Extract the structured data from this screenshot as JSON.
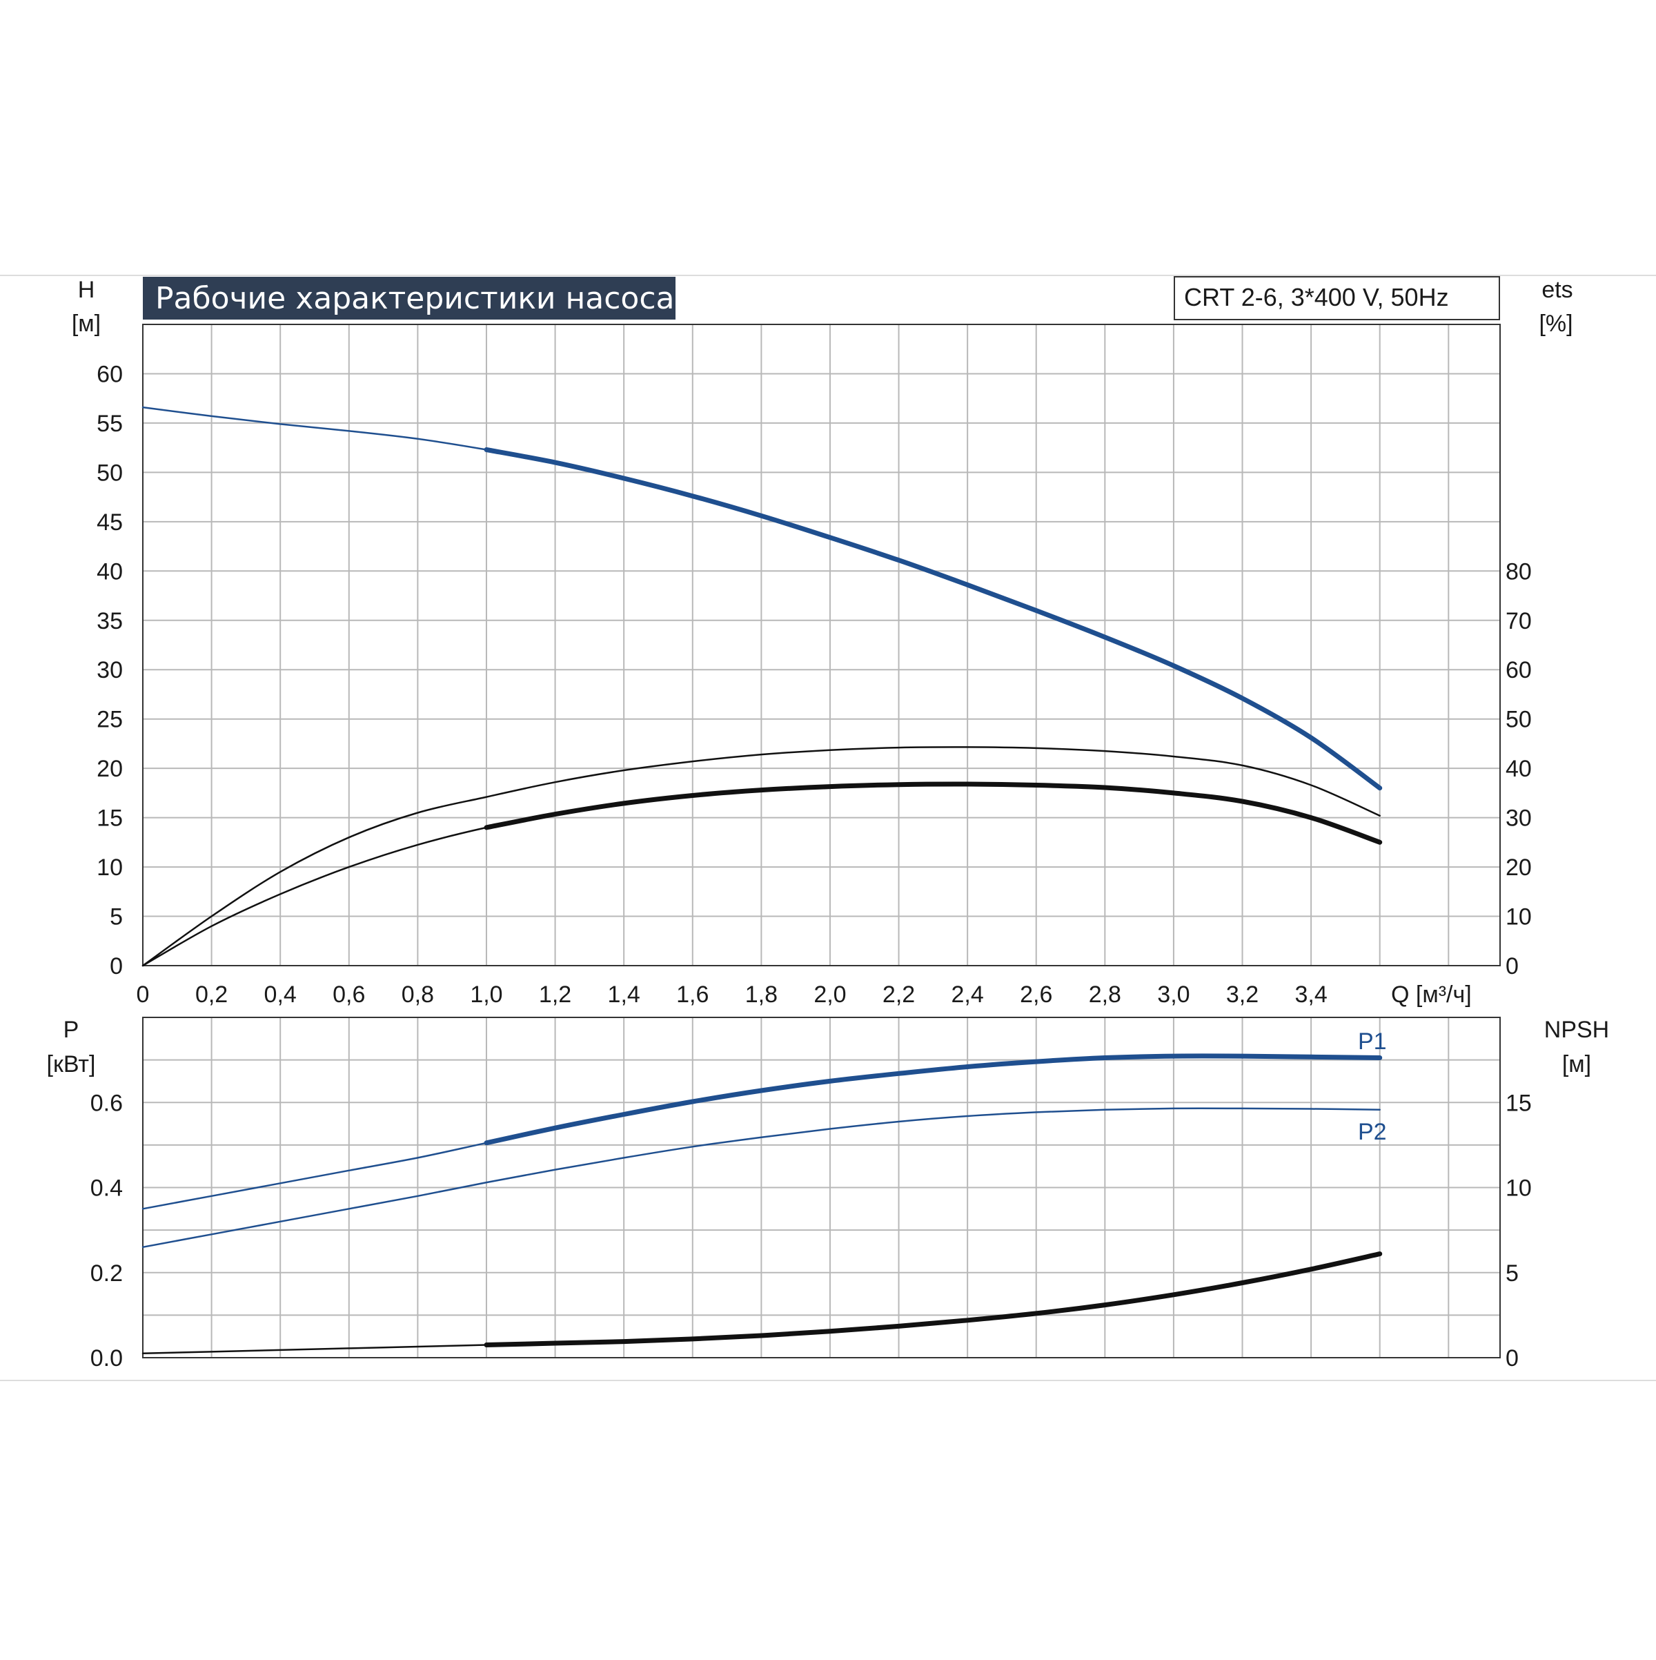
{
  "header": {
    "title": "Рабочие характеристики насоса",
    "model": "CRT 2-6, 3*400 V, 50Hz"
  },
  "colors": {
    "blue": "#1f4f8f",
    "black": "#111111",
    "grid": "#b8b8b8",
    "title_bg": "#2f3e54"
  },
  "chart_data": [
    {
      "type": "line",
      "name": "upper",
      "xlabel": "Q [м³/ч]",
      "ylabel_left": [
        "H",
        "[м]"
      ],
      "ylabel_right": [
        "ets",
        "[%]"
      ],
      "x_ticks": [
        "0",
        "0,2",
        "0,4",
        "0,6",
        "0,8",
        "1,0",
        "1,2",
        "1,4",
        "1,6",
        "1,8",
        "2,0",
        "2,2",
        "2,4",
        "2,6",
        "2,8",
        "3,0",
        "3,2",
        "3,4"
      ],
      "y_ticks_left": [
        "0",
        "5",
        "10",
        "15",
        "20",
        "25",
        "30",
        "35",
        "40",
        "45",
        "50",
        "55",
        "60"
      ],
      "y_ticks_right": [
        "0",
        "10",
        "20",
        "30",
        "40",
        "50",
        "60",
        "70",
        "80"
      ],
      "xlim": [
        0,
        3.95
      ],
      "ylim_left": [
        0,
        65
      ],
      "ylim_right": [
        0,
        130
      ],
      "grid": true,
      "series": [
        {
          "axis": "left",
          "color": "blue",
          "x": [
            0,
            0.2,
            0.4,
            0.6,
            0.8,
            1.0,
            1.2,
            1.4,
            1.6,
            1.8,
            2.0,
            2.2,
            2.4,
            2.6,
            2.8,
            3.0,
            3.2,
            3.4,
            3.6
          ],
          "y": [
            56.6,
            55.7,
            54.9,
            54.2,
            53.4,
            52.3,
            51.0,
            49.4,
            47.6,
            45.6,
            43.4,
            41.1,
            38.6,
            36.0,
            33.3,
            30.4,
            27.1,
            23.1,
            18.0
          ],
          "emphasis_from": 1.0
        },
        {
          "axis": "right",
          "color": "black",
          "x": [
            0,
            0.2,
            0.4,
            0.6,
            0.8,
            1.0,
            1.2,
            1.4,
            1.6,
            1.8,
            2.0,
            2.2,
            2.4,
            2.6,
            2.8,
            3.0,
            3.2,
            3.4,
            3.6
          ],
          "y": [
            0,
            10,
            19,
            26,
            31,
            34.2,
            37.2,
            39.6,
            41.4,
            42.8,
            43.7,
            44.2,
            44.3,
            44.1,
            43.5,
            42.4,
            40.6,
            36.6,
            30.4
          ]
        },
        {
          "axis": "right",
          "color": "black",
          "x": [
            0,
            0.2,
            0.4,
            0.6,
            0.8,
            1.0,
            1.2,
            1.4,
            1.6,
            1.8,
            2.0,
            2.2,
            2.4,
            2.6,
            2.8,
            3.0,
            3.2,
            3.4,
            3.6
          ],
          "y": [
            0,
            8,
            14.5,
            20,
            24.5,
            28,
            30.7,
            32.9,
            34.5,
            35.6,
            36.3,
            36.7,
            36.8,
            36.6,
            36.1,
            35.0,
            33.3,
            30.0,
            25.0
          ],
          "emphasis_from": 1.0
        }
      ]
    },
    {
      "type": "line",
      "name": "lower",
      "ylabel_left": [
        "P",
        "[кВт]"
      ],
      "ylabel_right": [
        "NPSH",
        "[м]"
      ],
      "y_ticks_left": [
        "0.0",
        "0.2",
        "0.4",
        "0.6"
      ],
      "y_ticks_right": [
        "0",
        "5",
        "10",
        "15"
      ],
      "xlim": [
        0,
        3.95
      ],
      "ylim_left": [
        0,
        0.8
      ],
      "ylim_right": [
        0,
        20
      ],
      "grid": true,
      "series": [
        {
          "name": "P1",
          "axis": "left",
          "color": "blue",
          "x": [
            0,
            0.2,
            0.4,
            0.6,
            0.8,
            1.0,
            1.2,
            1.4,
            1.6,
            1.8,
            2.0,
            2.2,
            2.4,
            2.6,
            2.8,
            3.0,
            3.2,
            3.4,
            3.6
          ],
          "y": [
            0.35,
            0.38,
            0.41,
            0.44,
            0.47,
            0.505,
            0.54,
            0.572,
            0.602,
            0.628,
            0.65,
            0.668,
            0.684,
            0.696,
            0.705,
            0.709,
            0.709,
            0.707,
            0.705
          ],
          "emphasis_from": 1.0
        },
        {
          "name": "P2",
          "axis": "left",
          "color": "blue",
          "x": [
            0,
            0.2,
            0.4,
            0.6,
            0.8,
            1.0,
            1.2,
            1.4,
            1.6,
            1.8,
            2.0,
            2.2,
            2.4,
            2.6,
            2.8,
            3.0,
            3.2,
            3.4,
            3.6
          ],
          "y": [
            0.26,
            0.29,
            0.32,
            0.35,
            0.38,
            0.412,
            0.442,
            0.47,
            0.496,
            0.518,
            0.538,
            0.555,
            0.568,
            0.577,
            0.583,
            0.586,
            0.586,
            0.585,
            0.583
          ]
        },
        {
          "axis": "right",
          "color": "black",
          "x": [
            0,
            0.2,
            0.4,
            0.6,
            0.8,
            1.0,
            1.2,
            1.4,
            1.6,
            1.8,
            2.0,
            2.2,
            2.4,
            2.6,
            2.8,
            3.0,
            3.2,
            3.4,
            3.6
          ],
          "y": [
            0.25,
            0.35,
            0.45,
            0.55,
            0.65,
            0.75,
            0.85,
            0.95,
            1.1,
            1.3,
            1.55,
            1.85,
            2.2,
            2.6,
            3.1,
            3.7,
            4.4,
            5.2,
            6.1
          ],
          "emphasis_from": 1.0
        }
      ]
    }
  ]
}
